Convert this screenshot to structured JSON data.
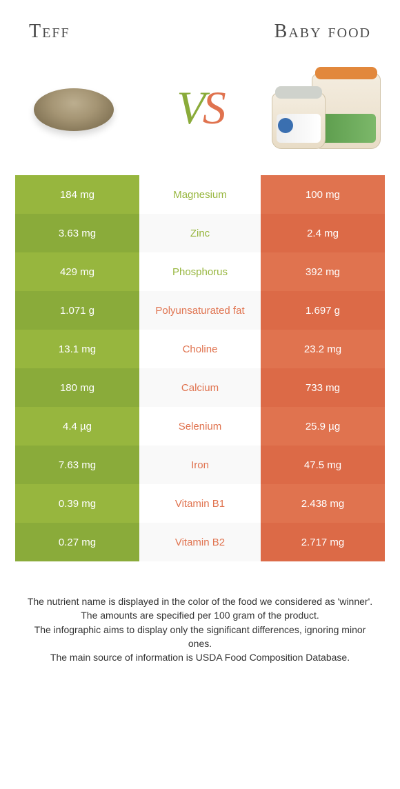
{
  "colors": {
    "left_primary": "#97b63e",
    "left_alt": "#8aab3a",
    "right_primary": "#e0734f",
    "right_alt": "#dc6a47",
    "row_alt_bg": "#f9f9f9",
    "text_dark": "#333333"
  },
  "header": {
    "left_title": "Teff",
    "right_title": "Baby food",
    "vs_v": "V",
    "vs_s": "S"
  },
  "rows": [
    {
      "label": "Magnesium",
      "left": "184 mg",
      "right": "100 mg",
      "winner": "left"
    },
    {
      "label": "Zinc",
      "left": "3.63 mg",
      "right": "2.4 mg",
      "winner": "left"
    },
    {
      "label": "Phosphorus",
      "left": "429 mg",
      "right": "392 mg",
      "winner": "left"
    },
    {
      "label": "Polyunsaturated fat",
      "left": "1.071 g",
      "right": "1.697 g",
      "winner": "right"
    },
    {
      "label": "Choline",
      "left": "13.1 mg",
      "right": "23.2 mg",
      "winner": "right"
    },
    {
      "label": "Calcium",
      "left": "180 mg",
      "right": "733 mg",
      "winner": "right"
    },
    {
      "label": "Selenium",
      "left": "4.4 µg",
      "right": "25.9 µg",
      "winner": "right"
    },
    {
      "label": "Iron",
      "left": "7.63 mg",
      "right": "47.5 mg",
      "winner": "right"
    },
    {
      "label": "Vitamin B1",
      "left": "0.39 mg",
      "right": "2.438 mg",
      "winner": "right"
    },
    {
      "label": "Vitamin B2",
      "left": "0.27 mg",
      "right": "2.717 mg",
      "winner": "right"
    }
  ],
  "footer": {
    "line1": "The nutrient name is displayed in the color of the food we considered as 'winner'.",
    "line2": "The amounts are specified per 100 gram of the product.",
    "line3": "The infographic aims to display only the significant differences, ignoring minor ones.",
    "line4": "The main source of information is USDA Food Composition Database."
  }
}
